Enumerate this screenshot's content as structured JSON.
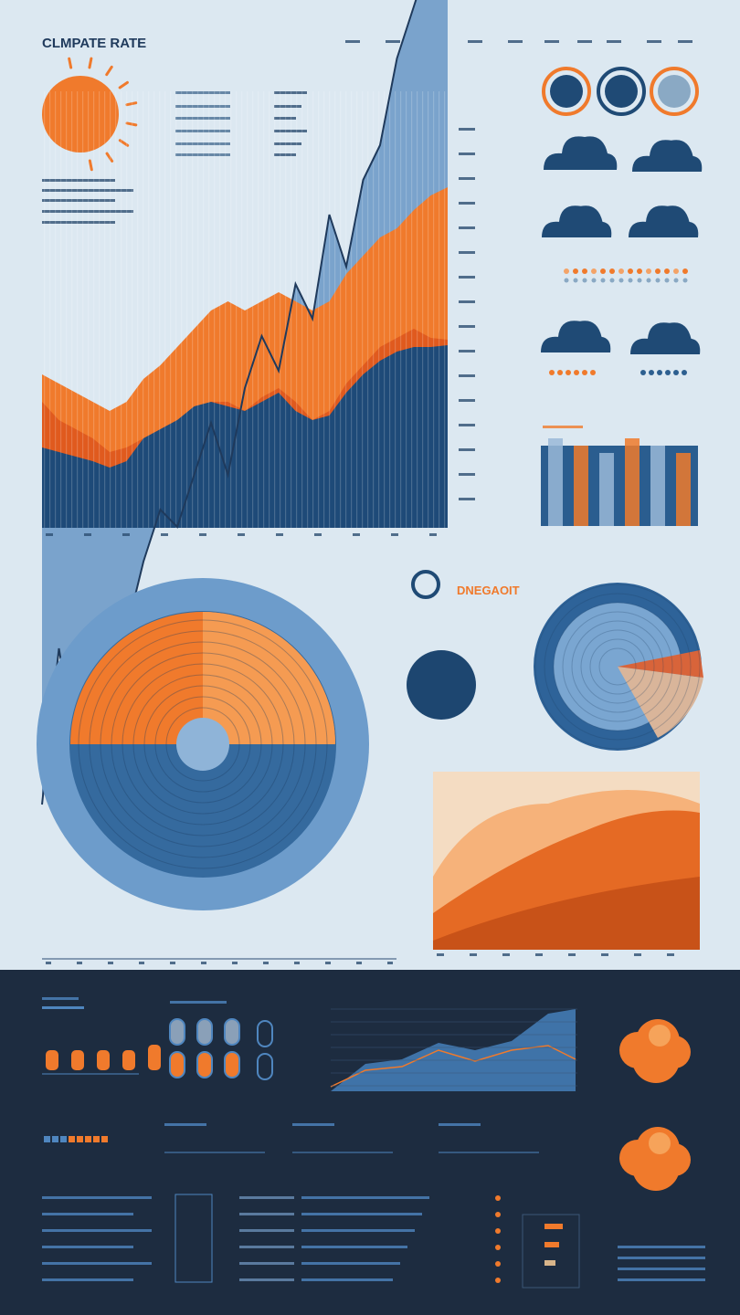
{
  "header": {
    "title": "CLMPATE RATE"
  },
  "dial": {
    "label": "DNEGAOIT"
  }
}
